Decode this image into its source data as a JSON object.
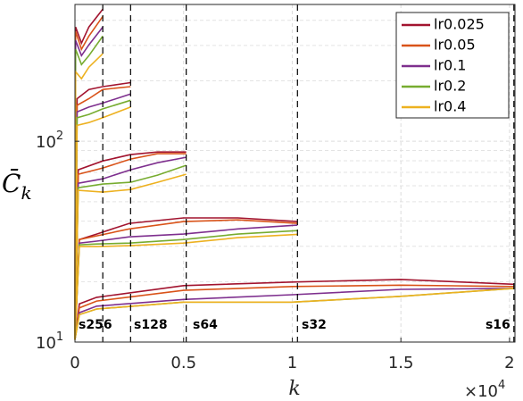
{
  "chart_data": {
    "type": "line",
    "ylabel": {
      "text": "C̄",
      "subscript": "k"
    },
    "xlabel": "k",
    "x_multiplier": {
      "base": "×10",
      "exponent": "4"
    },
    "xlim": [
      0,
      20250
    ],
    "xticks": [
      {
        "value": 0,
        "label": "0"
      },
      {
        "value": 5000,
        "label": "0.5"
      },
      {
        "value": 10000,
        "label": "1"
      },
      {
        "value": 15000,
        "label": "1.5"
      },
      {
        "value": 20000,
        "label": "2"
      }
    ],
    "ylim": [
      10,
      480
    ],
    "log_y": true,
    "yticks": [
      {
        "value": 10,
        "label": "10",
        "exponent": "1"
      },
      {
        "value": 100,
        "label": "10",
        "exponent": "2"
      }
    ],
    "yminorticks": [
      20,
      30,
      40,
      50,
      60,
      70,
      80,
      90,
      200,
      300,
      400
    ],
    "grid": true,
    "legend": "northeast",
    "groups": [
      {
        "label": "s256",
        "end": 1280,
        "x": [
          0,
          30,
          300,
          640,
          1280
        ]
      },
      {
        "label": "s128",
        "end": 2560,
        "x": [
          0,
          100,
          640,
          1280,
          2560
        ]
      },
      {
        "label": "s64",
        "end": 5120,
        "x": [
          0,
          150,
          1280,
          2560,
          3800,
          5120
        ]
      },
      {
        "label": "s32",
        "end": 10240,
        "x": [
          0,
          200,
          1000,
          2500,
          5000,
          7500,
          10240
        ]
      },
      {
        "label": "s16",
        "end": 20200,
        "x": [
          0,
          200,
          1000,
          5000,
          10000,
          15000,
          20200
        ]
      }
    ],
    "series": [
      {
        "name": "lr0.025",
        "color": "#a2142f",
        "values": [
          [
            10.3,
            371,
            308,
            371,
            455
          ],
          [
            10.3,
            163,
            181,
            187,
            196
          ],
          [
            10.3,
            72.1,
            79.8,
            85.8,
            88.4,
            88.4
          ],
          [
            10.3,
            32.4,
            34.5,
            39,
            41.5,
            41.5,
            39.8
          ],
          [
            10.3,
            15.5,
            16.7,
            19.1,
            19.9,
            20.5,
            19.4
          ]
        ]
      },
      {
        "name": "lr0.05",
        "color": "#d95319",
        "values": [
          [
            10.3,
            352,
            287,
            334,
            419
          ],
          [
            10.3,
            151,
            163,
            181,
            187
          ],
          [
            10.3,
            68.5,
            73.6,
            81.5,
            86.7,
            86.7
          ],
          [
            10.3,
            32.4,
            33.8,
            36.6,
            39.8,
            40.6,
            39
          ],
          [
            10.3,
            14.8,
            16,
            18.1,
            18.9,
            19.2,
            18.9
          ]
        ]
      },
      {
        "name": "lr0.1",
        "color": "#7e2f8e",
        "values": [
          [
            10.3,
            318,
            267,
            302,
            371
          ],
          [
            10.3,
            140,
            148,
            155,
            172
          ],
          [
            10.3,
            61.8,
            65,
            72.1,
            78.2,
            83.2
          ],
          [
            10.3,
            31.1,
            31.8,
            33.4,
            34.5,
            36.6,
            38.2
          ],
          [
            10.3,
            14,
            15.1,
            16.3,
            17.2,
            18.3,
            18.5
          ]
        ]
      },
      {
        "name": "lr0.2",
        "color": "#77ac30",
        "values": [
          [
            10.3,
            287,
            241,
            267,
            334
          ],
          [
            10.3,
            131,
            136,
            145,
            160
          ],
          [
            10.3,
            58.7,
            61.2,
            62.5,
            67.8,
            75.9
          ],
          [
            10.3,
            30.5,
            30.8,
            31.1,
            32.4,
            34.5,
            35.9
          ],
          [
            10.3,
            13.7,
            14.6,
            15.8,
            15.8,
            16.9,
            18.5
          ]
        ]
      },
      {
        "name": "lr0.4",
        "color": "#edb120",
        "values": [
          [
            10.3,
            222,
            205,
            234,
            273
          ],
          [
            10.3,
            120,
            124,
            131,
            148
          ],
          [
            10.3,
            57,
            55.8,
            57.5,
            62.5,
            68.5
          ],
          [
            10.3,
            29.9,
            29.9,
            30.2,
            31.1,
            33.1,
            34.4
          ],
          [
            10.3,
            13.7,
            14.6,
            15.8,
            15.8,
            16.9,
            18.5
          ]
        ]
      }
    ]
  }
}
